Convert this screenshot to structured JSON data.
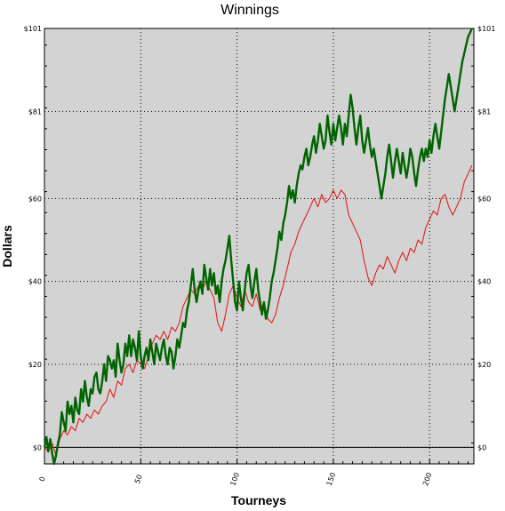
{
  "chart_data": {
    "type": "line",
    "title": "Winnings",
    "xlabel": "Tourneys",
    "ylabel": "Dollars",
    "xlim": [
      0,
      223
    ],
    "ylim": [
      -4,
      101
    ],
    "x_ticks": [
      0,
      50,
      100,
      150,
      200
    ],
    "x_tick_labels": [
      "0",
      "50",
      "100",
      "150",
      "200"
    ],
    "y_ticks": [
      0,
      20,
      40,
      60,
      81,
      101
    ],
    "y_tick_labels": [
      "$0",
      "$20",
      "$40",
      "$60",
      "$81",
      "$101"
    ],
    "grid": true,
    "zero_line": 0,
    "series": [
      {
        "color": "#006400",
        "width": 2.4,
        "points": [
          [
            0,
            0
          ],
          [
            1,
            2.5
          ],
          [
            2,
            -1
          ],
          [
            3,
            2
          ],
          [
            4,
            -1.5
          ],
          [
            5,
            -4
          ],
          [
            6,
            -2
          ],
          [
            7,
            1
          ],
          [
            8,
            3
          ],
          [
            9,
            8.5
          ],
          [
            10,
            6
          ],
          [
            11,
            4
          ],
          [
            12,
            11
          ],
          [
            13,
            8
          ],
          [
            14,
            10
          ],
          [
            15,
            6
          ],
          [
            16,
            12
          ],
          [
            17,
            9
          ],
          [
            18,
            8
          ],
          [
            19,
            14
          ],
          [
            20,
            11
          ],
          [
            21,
            16
          ],
          [
            22,
            12
          ],
          [
            23,
            10
          ],
          [
            24,
            14
          ],
          [
            25,
            13
          ],
          [
            26,
            17
          ],
          [
            27,
            18
          ],
          [
            28,
            14
          ],
          [
            29,
            13
          ],
          [
            30,
            16
          ],
          [
            31,
            20
          ],
          [
            32,
            16
          ],
          [
            33,
            22
          ],
          [
            34,
            21
          ],
          [
            35,
            19
          ],
          [
            36,
            21
          ],
          [
            37,
            17
          ],
          [
            38,
            25
          ],
          [
            39,
            21
          ],
          [
            40,
            18
          ],
          [
            41,
            20
          ],
          [
            42,
            25
          ],
          [
            43,
            22
          ],
          [
            44,
            27
          ],
          [
            45,
            22
          ],
          [
            46,
            26
          ],
          [
            47,
            24
          ],
          [
            48,
            21
          ],
          [
            49,
            28
          ],
          [
            50,
            22
          ],
          [
            51,
            19
          ],
          [
            52,
            22
          ],
          [
            53,
            24
          ],
          [
            54,
            21
          ],
          [
            55,
            26
          ],
          [
            56,
            23
          ],
          [
            57,
            20
          ],
          [
            58,
            25
          ],
          [
            59,
            23
          ],
          [
            60,
            21
          ],
          [
            61,
            24
          ],
          [
            62,
            26
          ],
          [
            63,
            22
          ],
          [
            64,
            20
          ],
          [
            65,
            24
          ],
          [
            66,
            23
          ],
          [
            67,
            19
          ],
          [
            68,
            22
          ],
          [
            69,
            26
          ],
          [
            70,
            24
          ],
          [
            71,
            27
          ],
          [
            72,
            30
          ],
          [
            73,
            29
          ],
          [
            74,
            33
          ],
          [
            75,
            35
          ],
          [
            76,
            39
          ],
          [
            77,
            43
          ],
          [
            78,
            38
          ],
          [
            79,
            35
          ],
          [
            80,
            38
          ],
          [
            81,
            40
          ],
          [
            82,
            37
          ],
          [
            83,
            44
          ],
          [
            84,
            41
          ],
          [
            85,
            38
          ],
          [
            86,
            43
          ],
          [
            87,
            39
          ],
          [
            88,
            42
          ],
          [
            89,
            37
          ],
          [
            90,
            39
          ],
          [
            91,
            35
          ],
          [
            92,
            40
          ],
          [
            93,
            43
          ],
          [
            94,
            45
          ],
          [
            95,
            48
          ],
          [
            96,
            51
          ],
          [
            97,
            45
          ],
          [
            98,
            40
          ],
          [
            99,
            35
          ],
          [
            100,
            33
          ],
          [
            101,
            40
          ],
          [
            102,
            36
          ],
          [
            103,
            33
          ],
          [
            104,
            38
          ],
          [
            105,
            42
          ],
          [
            106,
            44
          ],
          [
            107,
            39
          ],
          [
            108,
            36
          ],
          [
            109,
            40
          ],
          [
            110,
            43
          ],
          [
            111,
            38
          ],
          [
            112,
            35
          ],
          [
            113,
            32
          ],
          [
            114,
            35
          ],
          [
            115,
            31
          ],
          [
            116,
            33
          ],
          [
            117,
            36
          ],
          [
            118,
            40
          ],
          [
            119,
            42
          ],
          [
            120,
            45
          ],
          [
            121,
            48
          ],
          [
            122,
            52
          ],
          [
            123,
            50
          ],
          [
            124,
            54
          ],
          [
            125,
            56
          ],
          [
            126,
            59
          ],
          [
            127,
            63
          ],
          [
            128,
            60
          ],
          [
            129,
            62
          ],
          [
            130,
            59
          ],
          [
            131,
            63
          ],
          [
            132,
            66
          ],
          [
            133,
            68
          ],
          [
            134,
            67
          ],
          [
            135,
            70
          ],
          [
            136,
            72
          ],
          [
            137,
            68
          ],
          [
            138,
            70
          ],
          [
            139,
            73
          ],
          [
            140,
            75
          ],
          [
            141,
            71
          ],
          [
            142,
            74
          ],
          [
            143,
            78
          ],
          [
            144,
            75
          ],
          [
            145,
            72
          ],
          [
            146,
            74
          ],
          [
            147,
            80
          ],
          [
            148,
            76
          ],
          [
            149,
            73
          ],
          [
            150,
            78
          ],
          [
            151,
            74
          ],
          [
            152,
            77
          ],
          [
            153,
            80
          ],
          [
            154,
            77
          ],
          [
            155,
            73
          ],
          [
            156,
            78
          ],
          [
            157,
            75
          ],
          [
            158,
            80
          ],
          [
            159,
            85
          ],
          [
            160,
            82
          ],
          [
            161,
            77
          ],
          [
            162,
            73
          ],
          [
            163,
            77
          ],
          [
            164,
            80
          ],
          [
            165,
            74
          ],
          [
            166,
            71
          ],
          [
            167,
            74
          ],
          [
            168,
            77
          ],
          [
            169,
            73
          ],
          [
            170,
            70
          ],
          [
            171,
            72
          ],
          [
            172,
            69
          ],
          [
            173,
            66
          ],
          [
            174,
            63
          ],
          [
            175,
            60
          ],
          [
            176,
            63
          ],
          [
            177,
            66
          ],
          [
            178,
            70
          ],
          [
            179,
            73
          ],
          [
            180,
            69
          ],
          [
            181,
            65
          ],
          [
            182,
            69
          ],
          [
            183,
            72
          ],
          [
            184,
            69
          ],
          [
            185,
            66
          ],
          [
            186,
            71
          ],
          [
            187,
            68
          ],
          [
            188,
            65
          ],
          [
            189,
            68
          ],
          [
            190,
            72
          ],
          [
            191,
            70
          ],
          [
            192,
            66
          ],
          [
            193,
            63
          ],
          [
            194,
            67
          ],
          [
            195,
            70
          ],
          [
            196,
            72
          ],
          [
            197,
            69
          ],
          [
            198,
            72
          ],
          [
            199,
            70
          ],
          [
            200,
            74
          ],
          [
            201,
            71
          ],
          [
            202,
            75
          ],
          [
            203,
            78
          ],
          [
            204,
            75
          ],
          [
            205,
            72
          ],
          [
            206,
            76
          ],
          [
            207,
            80
          ],
          [
            208,
            84
          ],
          [
            209,
            87
          ],
          [
            210,
            90
          ],
          [
            211,
            87
          ],
          [
            212,
            84
          ],
          [
            213,
            81
          ],
          [
            214,
            84
          ],
          [
            215,
            87
          ],
          [
            216,
            90
          ],
          [
            217,
            93
          ],
          [
            218,
            95
          ],
          [
            219,
            97
          ],
          [
            220,
            99
          ],
          [
            221,
            100
          ],
          [
            222,
            101
          ]
        ]
      },
      {
        "color": "#e02020",
        "width": 1.1,
        "points": [
          [
            0,
            0
          ],
          [
            2,
            -1
          ],
          [
            4,
            1
          ],
          [
            6,
            -2
          ],
          [
            8,
            2
          ],
          [
            10,
            4
          ],
          [
            12,
            3
          ],
          [
            14,
            5
          ],
          [
            16,
            4
          ],
          [
            18,
            7
          ],
          [
            20,
            6
          ],
          [
            22,
            8
          ],
          [
            24,
            7
          ],
          [
            26,
            9
          ],
          [
            28,
            8
          ],
          [
            30,
            10
          ],
          [
            32,
            11
          ],
          [
            34,
            14
          ],
          [
            36,
            12
          ],
          [
            38,
            16
          ],
          [
            40,
            15
          ],
          [
            42,
            19
          ],
          [
            44,
            20
          ],
          [
            46,
            18
          ],
          [
            48,
            21
          ],
          [
            50,
            20
          ],
          [
            52,
            19
          ],
          [
            54,
            22
          ],
          [
            56,
            25
          ],
          [
            58,
            27
          ],
          [
            60,
            26
          ],
          [
            62,
            28
          ],
          [
            64,
            26
          ],
          [
            66,
            29
          ],
          [
            68,
            28
          ],
          [
            70,
            30
          ],
          [
            72,
            34
          ],
          [
            74,
            36
          ],
          [
            76,
            38
          ],
          [
            78,
            37
          ],
          [
            80,
            39
          ],
          [
            82,
            38
          ],
          [
            84,
            40
          ],
          [
            86,
            38
          ],
          [
            88,
            36
          ],
          [
            90,
            30
          ],
          [
            92,
            28
          ],
          [
            94,
            32
          ],
          [
            96,
            37
          ],
          [
            98,
            39
          ],
          [
            100,
            36
          ],
          [
            102,
            34
          ],
          [
            104,
            38
          ],
          [
            106,
            35
          ],
          [
            108,
            34
          ],
          [
            110,
            37
          ],
          [
            112,
            33
          ],
          [
            114,
            35
          ],
          [
            116,
            31
          ],
          [
            118,
            30
          ],
          [
            120,
            32
          ],
          [
            122,
            36
          ],
          [
            124,
            39
          ],
          [
            126,
            43
          ],
          [
            128,
            47
          ],
          [
            130,
            49
          ],
          [
            132,
            52
          ],
          [
            134,
            54
          ],
          [
            136,
            56
          ],
          [
            138,
            58
          ],
          [
            140,
            60
          ],
          [
            142,
            58
          ],
          [
            144,
            61
          ],
          [
            146,
            59
          ],
          [
            148,
            60
          ],
          [
            150,
            62
          ],
          [
            152,
            60
          ],
          [
            154,
            62
          ],
          [
            156,
            61
          ],
          [
            158,
            56
          ],
          [
            160,
            54
          ],
          [
            162,
            52
          ],
          [
            164,
            50
          ],
          [
            166,
            45
          ],
          [
            168,
            41
          ],
          [
            170,
            39
          ],
          [
            172,
            42
          ],
          [
            174,
            44
          ],
          [
            176,
            43
          ],
          [
            178,
            46
          ],
          [
            180,
            44
          ],
          [
            182,
            42
          ],
          [
            184,
            45
          ],
          [
            186,
            47
          ],
          [
            188,
            45
          ],
          [
            190,
            48
          ],
          [
            192,
            47
          ],
          [
            194,
            50
          ],
          [
            196,
            49
          ],
          [
            198,
            53
          ],
          [
            200,
            55
          ],
          [
            202,
            57
          ],
          [
            204,
            56
          ],
          [
            206,
            60
          ],
          [
            208,
            61
          ],
          [
            210,
            58
          ],
          [
            212,
            56
          ],
          [
            214,
            58
          ],
          [
            216,
            60
          ],
          [
            218,
            64
          ],
          [
            220,
            66
          ],
          [
            222,
            68
          ]
        ]
      }
    ]
  }
}
